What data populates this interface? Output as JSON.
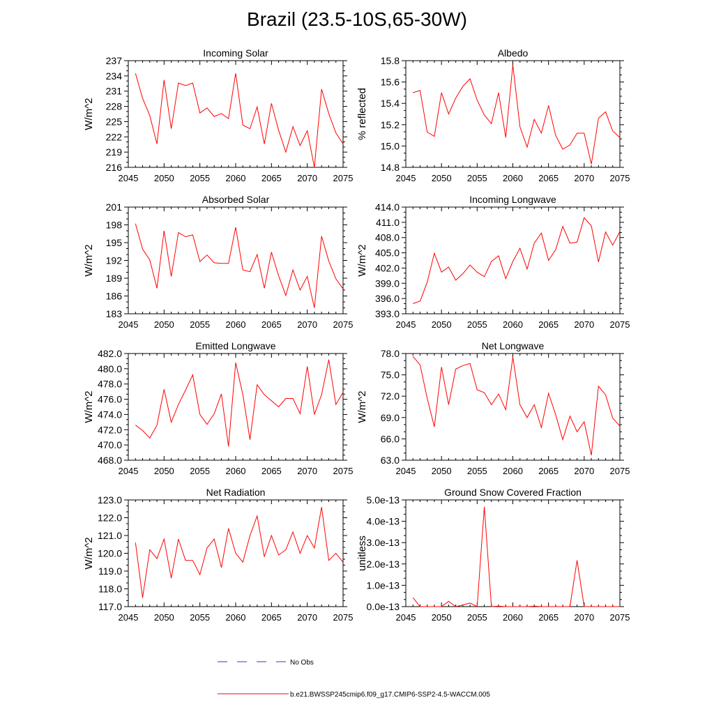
{
  "title": "Brazil (23.5-10S,65-30W)",
  "legend": {
    "entries": [
      {
        "label": "No Obs",
        "color": "#3333cc",
        "style": "dashed"
      },
      {
        "label": "b.e21.BWSSP245cmip6.f09_g17.CMIP6-SSP2-4.5-WACCM.005",
        "color": "#ff0000",
        "style": "solid"
      }
    ]
  },
  "chart_data": [
    {
      "type": "line",
      "title": "Incoming Solar",
      "ylabel": "W/m^2",
      "xlim": [
        2045,
        2075
      ],
      "ylim": [
        216,
        237
      ],
      "xticks": [
        "2045",
        "2050",
        "2055",
        "2060",
        "2065",
        "2070",
        "2075"
      ],
      "yticks": [
        "216",
        "219",
        "222",
        "225",
        "228",
        "231",
        "234",
        "237"
      ],
      "x": [
        2046,
        2047,
        2048,
        2049,
        2050,
        2051,
        2052,
        2053,
        2054,
        2055,
        2056,
        2057,
        2058,
        2059,
        2060,
        2061,
        2062,
        2063,
        2064,
        2065,
        2066,
        2067,
        2068,
        2069,
        2070,
        2071,
        2072,
        2073,
        2074,
        2075
      ],
      "series": [
        {
          "color": "#ff0000",
          "values": [
            234.5,
            229.6,
            226.2,
            220.6,
            233.2,
            223.6,
            232.6,
            232.1,
            232.6,
            226.7,
            227.7,
            226.0,
            226.6,
            225.6,
            234.5,
            224.3,
            223.6,
            227.9,
            220.6,
            228.6,
            223.3,
            219.0,
            224.0,
            220.3,
            223.2,
            216.0,
            231.4,
            226.6,
            222.8,
            220.6
          ]
        }
      ]
    },
    {
      "type": "line",
      "title": "Albedo",
      "ylabel": "% reflected",
      "xlim": [
        2045,
        2075
      ],
      "ylim": [
        14.8,
        15.8
      ],
      "xticks": [
        "2045",
        "2050",
        "2055",
        "2060",
        "2065",
        "2070",
        "2075"
      ],
      "yticks": [
        "14.8",
        "15.0",
        "15.2",
        "15.4",
        "15.6",
        "15.8"
      ],
      "x": [
        2046,
        2047,
        2048,
        2049,
        2050,
        2051,
        2052,
        2053,
        2054,
        2055,
        2056,
        2057,
        2058,
        2059,
        2060,
        2061,
        2062,
        2063,
        2064,
        2065,
        2066,
        2067,
        2068,
        2069,
        2070,
        2071,
        2072,
        2073,
        2074,
        2075
      ],
      "series": [
        {
          "color": "#ff0000",
          "values": [
            15.5,
            15.52,
            15.13,
            15.09,
            15.5,
            15.3,
            15.45,
            15.56,
            15.63,
            15.43,
            15.29,
            15.21,
            15.5,
            15.08,
            15.76,
            15.18,
            14.99,
            15.25,
            15.12,
            15.38,
            15.1,
            14.97,
            15.01,
            15.12,
            15.12,
            14.83,
            15.26,
            15.32,
            15.14,
            15.08
          ]
        }
      ]
    },
    {
      "type": "line",
      "title": "Absorbed Solar",
      "ylabel": "W/m^2",
      "xlim": [
        2045,
        2075
      ],
      "ylim": [
        183,
        201
      ],
      "xticks": [
        "2045",
        "2050",
        "2055",
        "2060",
        "2065",
        "2070",
        "2075"
      ],
      "yticks": [
        "183",
        "186",
        "189",
        "192",
        "195",
        "198",
        "201"
      ],
      "x": [
        2046,
        2047,
        2048,
        2049,
        2050,
        2051,
        2052,
        2053,
        2054,
        2055,
        2056,
        2057,
        2058,
        2059,
        2060,
        2061,
        2062,
        2063,
        2064,
        2065,
        2066,
        2067,
        2068,
        2069,
        2070,
        2071,
        2072,
        2073,
        2074,
        2075
      ],
      "series": [
        {
          "color": "#ff0000",
          "values": [
            198.2,
            193.9,
            192.1,
            187.3,
            197.0,
            189.3,
            196.7,
            196.0,
            196.3,
            191.8,
            192.9,
            191.6,
            191.5,
            191.5,
            197.6,
            190.4,
            190.1,
            193.0,
            187.3,
            193.4,
            189.4,
            186.1,
            190.4,
            187.0,
            189.3,
            184.0,
            196.1,
            191.9,
            188.9,
            187.2
          ]
        }
      ]
    },
    {
      "type": "line",
      "title": "Incoming Longwave",
      "ylabel": "W/m^2",
      "xlim": [
        2045,
        2075
      ],
      "ylim": [
        393,
        414
      ],
      "xticks": [
        "2045",
        "2050",
        "2055",
        "2060",
        "2065",
        "2070",
        "2075"
      ],
      "yticks": [
        "393.0",
        "396.0",
        "399.0",
        "402.0",
        "405.0",
        "408.0",
        "411.0",
        "414.0"
      ],
      "x": [
        2046,
        2047,
        2048,
        2049,
        2050,
        2051,
        2052,
        2053,
        2054,
        2055,
        2056,
        2057,
        2058,
        2059,
        2060,
        2061,
        2062,
        2063,
        2064,
        2065,
        2066,
        2067,
        2068,
        2069,
        2070,
        2071,
        2072,
        2073,
        2074,
        2075
      ],
      "series": [
        {
          "color": "#ff0000",
          "values": [
            395.0,
            395.5,
            399.2,
            404.9,
            401.2,
            402.2,
            399.6,
            400.9,
            402.6,
            401.2,
            400.3,
            403.3,
            404.4,
            399.9,
            403.3,
            405.9,
            401.8,
            406.9,
            408.9,
            403.5,
            405.6,
            410.2,
            406.9,
            407.1,
            411.9,
            410.3,
            403.2,
            409.1,
            406.5,
            409.2
          ]
        }
      ]
    },
    {
      "type": "line",
      "title": "Emitted Longwave",
      "ylabel": "W/m^2",
      "xlim": [
        2045,
        2075
      ],
      "ylim": [
        468,
        482
      ],
      "xticks": [
        "2045",
        "2050",
        "2055",
        "2060",
        "2065",
        "2070",
        "2075"
      ],
      "yticks": [
        "468.0",
        "470.0",
        "472.0",
        "474.0",
        "476.0",
        "478.0",
        "480.0",
        "482.0"
      ],
      "x": [
        2046,
        2047,
        2048,
        2049,
        2050,
        2051,
        2052,
        2053,
        2054,
        2055,
        2056,
        2057,
        2058,
        2059,
        2060,
        2061,
        2062,
        2063,
        2064,
        2065,
        2066,
        2067,
        2068,
        2069,
        2070,
        2071,
        2072,
        2073,
        2074,
        2075
      ],
      "series": [
        {
          "color": "#ff0000",
          "values": [
            472.6,
            471.9,
            470.9,
            472.6,
            477.3,
            473.0,
            475.3,
            477.2,
            479.2,
            474.0,
            472.7,
            474.1,
            476.7,
            469.8,
            480.8,
            476.6,
            470.7,
            477.9,
            476.6,
            475.8,
            475.0,
            476.1,
            476.1,
            474.1,
            480.3,
            474.0,
            476.6,
            481.2,
            475.3,
            476.9
          ]
        }
      ]
    },
    {
      "type": "line",
      "title": "Net Longwave",
      "ylabel": "W/m^2",
      "xlim": [
        2045,
        2075
      ],
      "ylim": [
        63,
        78
      ],
      "xticks": [
        "2045",
        "2050",
        "2055",
        "2060",
        "2065",
        "2070",
        "2075"
      ],
      "yticks": [
        "63.0",
        "66.0",
        "69.0",
        "72.0",
        "75.0",
        "78.0"
      ],
      "x": [
        2046,
        2047,
        2048,
        2049,
        2050,
        2051,
        2052,
        2053,
        2054,
        2055,
        2056,
        2057,
        2058,
        2059,
        2060,
        2061,
        2062,
        2063,
        2064,
        2065,
        2066,
        2067,
        2068,
        2069,
        2070,
        2071,
        2072,
        2073,
        2074,
        2075
      ],
      "series": [
        {
          "color": "#ff0000",
          "values": [
            77.6,
            76.4,
            71.7,
            67.7,
            76.1,
            70.8,
            75.8,
            76.3,
            76.6,
            72.9,
            72.5,
            70.8,
            72.3,
            70.1,
            77.5,
            70.8,
            69.0,
            70.8,
            67.6,
            72.4,
            69.4,
            65.9,
            69.2,
            67.0,
            68.4,
            63.7,
            73.4,
            72.2,
            68.9,
            67.8
          ]
        }
      ]
    },
    {
      "type": "line",
      "title": "Net Radiation",
      "ylabel": "W/m^2",
      "xlim": [
        2045,
        2075
      ],
      "ylim": [
        117,
        123
      ],
      "xticks": [
        "2045",
        "2050",
        "2055",
        "2060",
        "2065",
        "2070",
        "2075"
      ],
      "yticks": [
        "117.0",
        "118.0",
        "119.0",
        "120.0",
        "121.0",
        "122.0",
        "123.0"
      ],
      "x": [
        2046,
        2047,
        2048,
        2049,
        2050,
        2051,
        2052,
        2053,
        2054,
        2055,
        2056,
        2057,
        2058,
        2059,
        2060,
        2061,
        2062,
        2063,
        2064,
        2065,
        2066,
        2067,
        2068,
        2069,
        2070,
        2071,
        2072,
        2073,
        2074,
        2075
      ],
      "series": [
        {
          "color": "#ff0000",
          "values": [
            120.6,
            117.5,
            120.2,
            119.7,
            120.8,
            118.6,
            120.8,
            119.6,
            119.6,
            118.8,
            120.3,
            120.8,
            119.2,
            121.4,
            120.0,
            119.5,
            121.0,
            122.1,
            119.8,
            121.0,
            119.9,
            120.2,
            121.2,
            120.0,
            121.0,
            120.3,
            122.6,
            119.6,
            120.0,
            119.5
          ]
        }
      ]
    },
    {
      "type": "line",
      "title": "Ground Snow Covered Fraction",
      "ylabel": "unitless",
      "xlim": [
        2045,
        2075
      ],
      "ylim": [
        0,
        5e-13
      ],
      "xticks": [
        "2045",
        "2050",
        "2055",
        "2060",
        "2065",
        "2070",
        "2075"
      ],
      "yticks": [
        "0.0e-13",
        "1.0e-13",
        "2.0e-13",
        "3.0e-13",
        "4.0e-13",
        "5.0e-13"
      ],
      "x": [
        2046,
        2047,
        2048,
        2049,
        2050,
        2051,
        2052,
        2053,
        2054,
        2055,
        2056,
        2057,
        2058,
        2059,
        2060,
        2061,
        2062,
        2063,
        2064,
        2065,
        2066,
        2067,
        2068,
        2069,
        2070,
        2071,
        2072,
        2073,
        2074,
        2075
      ],
      "series": [
        {
          "color": "#ff0000",
          "values": [
            4.2e-14,
            0,
            0,
            0,
            0,
            2.5e-14,
            0,
            8e-15,
            1.7e-14,
            0,
            4.68e-13,
            0,
            2e-15,
            0,
            0,
            0,
            0,
            2e-15,
            0,
            0,
            0,
            0,
            0,
            2.17e-13,
            0,
            0,
            0,
            0,
            0,
            0
          ]
        }
      ]
    }
  ]
}
